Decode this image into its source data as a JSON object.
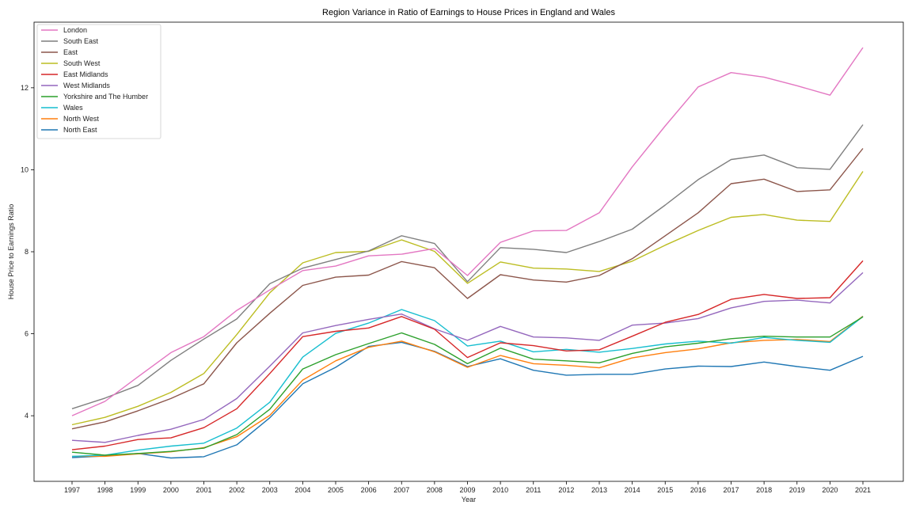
{
  "chart_data": {
    "type": "line",
    "title": "Region Variance in Ratio of Earnings to House Prices in England and Wales",
    "xlabel": "Year",
    "ylabel": "House Price to Earnings Ratio",
    "x": [
      "1997",
      "1998",
      "1999",
      "2000",
      "2001",
      "2002",
      "2003",
      "2004",
      "2005",
      "2006",
      "2007",
      "2008",
      "2009",
      "2010",
      "2011",
      "2012",
      "2013",
      "2014",
      "2015",
      "2016",
      "2017",
      "2018",
      "2019",
      "2020",
      "2021"
    ],
    "ylim": [
      2.4,
      13.6
    ],
    "yticks": [
      4,
      6,
      8,
      10,
      12
    ],
    "grid": false,
    "legend_position": "upper-left",
    "series": [
      {
        "name": "London",
        "color": "#e377c2",
        "values": [
          4.0,
          4.35,
          4.95,
          5.54,
          5.93,
          6.57,
          7.07,
          7.54,
          7.65,
          7.9,
          7.94,
          8.08,
          7.42,
          8.23,
          8.51,
          8.52,
          8.95,
          10.07,
          11.07,
          12.02,
          12.37,
          12.26,
          12.05,
          11.82,
          12.98
        ]
      },
      {
        "name": "South East",
        "color": "#7f7f7f",
        "values": [
          4.17,
          4.43,
          4.74,
          5.35,
          5.87,
          6.36,
          7.22,
          7.6,
          7.81,
          8.02,
          8.39,
          8.2,
          7.27,
          8.1,
          8.06,
          7.98,
          8.25,
          8.55,
          9.14,
          9.76,
          10.25,
          10.36,
          10.05,
          10.01,
          11.1
        ]
      },
      {
        "name": "East",
        "color": "#8c564b",
        "values": [
          3.68,
          3.85,
          4.12,
          4.42,
          4.78,
          5.78,
          6.5,
          7.18,
          7.38,
          7.43,
          7.76,
          7.61,
          6.86,
          7.44,
          7.31,
          7.26,
          7.42,
          7.83,
          8.39,
          8.95,
          9.66,
          9.77,
          9.47,
          9.51,
          10.52
        ]
      },
      {
        "name": "South West",
        "color": "#bcbd22",
        "values": [
          3.78,
          3.96,
          4.23,
          4.57,
          5.03,
          5.98,
          7.0,
          7.73,
          7.98,
          8.01,
          8.29,
          8.01,
          7.23,
          7.75,
          7.6,
          7.58,
          7.52,
          7.77,
          8.16,
          8.52,
          8.84,
          8.91,
          8.77,
          8.74,
          9.96
        ]
      },
      {
        "name": "East Midlands",
        "color": "#d62728",
        "values": [
          3.17,
          3.26,
          3.42,
          3.46,
          3.71,
          4.17,
          5.03,
          5.93,
          6.06,
          6.14,
          6.42,
          6.11,
          5.42,
          5.78,
          5.71,
          5.58,
          5.61,
          5.94,
          6.28,
          6.47,
          6.84,
          6.96,
          6.86,
          6.88,
          7.78
        ]
      },
      {
        "name": "West Midlands",
        "color": "#9467bd",
        "values": [
          3.4,
          3.35,
          3.52,
          3.67,
          3.91,
          4.42,
          5.21,
          6.02,
          6.2,
          6.35,
          6.48,
          6.12,
          5.84,
          6.18,
          5.92,
          5.9,
          5.84,
          6.21,
          6.26,
          6.37,
          6.63,
          6.79,
          6.82,
          6.75,
          7.49
        ]
      },
      {
        "name": "Yorkshire and The Humber",
        "color": "#2ca02c",
        "values": [
          3.11,
          3.04,
          3.08,
          3.13,
          3.21,
          3.54,
          4.16,
          5.14,
          5.49,
          5.76,
          6.02,
          5.74,
          5.27,
          5.65,
          5.38,
          5.34,
          5.29,
          5.52,
          5.68,
          5.77,
          5.88,
          5.94,
          5.92,
          5.92,
          6.41
        ]
      },
      {
        "name": "Wales",
        "color": "#17becf",
        "values": [
          3.01,
          3.04,
          3.16,
          3.26,
          3.33,
          3.7,
          4.33,
          5.43,
          6.01,
          6.26,
          6.59,
          6.32,
          5.7,
          5.82,
          5.56,
          5.62,
          5.55,
          5.64,
          5.75,
          5.82,
          5.77,
          5.91,
          5.84,
          5.79,
          6.42
        ]
      },
      {
        "name": "North West",
        "color": "#ff7f0e",
        "values": [
          3.01,
          3.01,
          3.07,
          3.12,
          3.22,
          3.49,
          4.01,
          4.87,
          5.34,
          5.67,
          5.82,
          5.56,
          5.18,
          5.47,
          5.27,
          5.23,
          5.17,
          5.41,
          5.54,
          5.63,
          5.78,
          5.84,
          5.86,
          5.81,
          6.43
        ]
      },
      {
        "name": "North East",
        "color": "#1f77b4",
        "values": [
          2.98,
          3.02,
          3.08,
          2.97,
          3.0,
          3.29,
          3.95,
          4.78,
          5.18,
          5.69,
          5.79,
          5.57,
          5.2,
          5.39,
          5.11,
          4.99,
          5.01,
          5.01,
          5.14,
          5.21,
          5.2,
          5.31,
          5.2,
          5.11,
          5.45
        ]
      }
    ]
  }
}
